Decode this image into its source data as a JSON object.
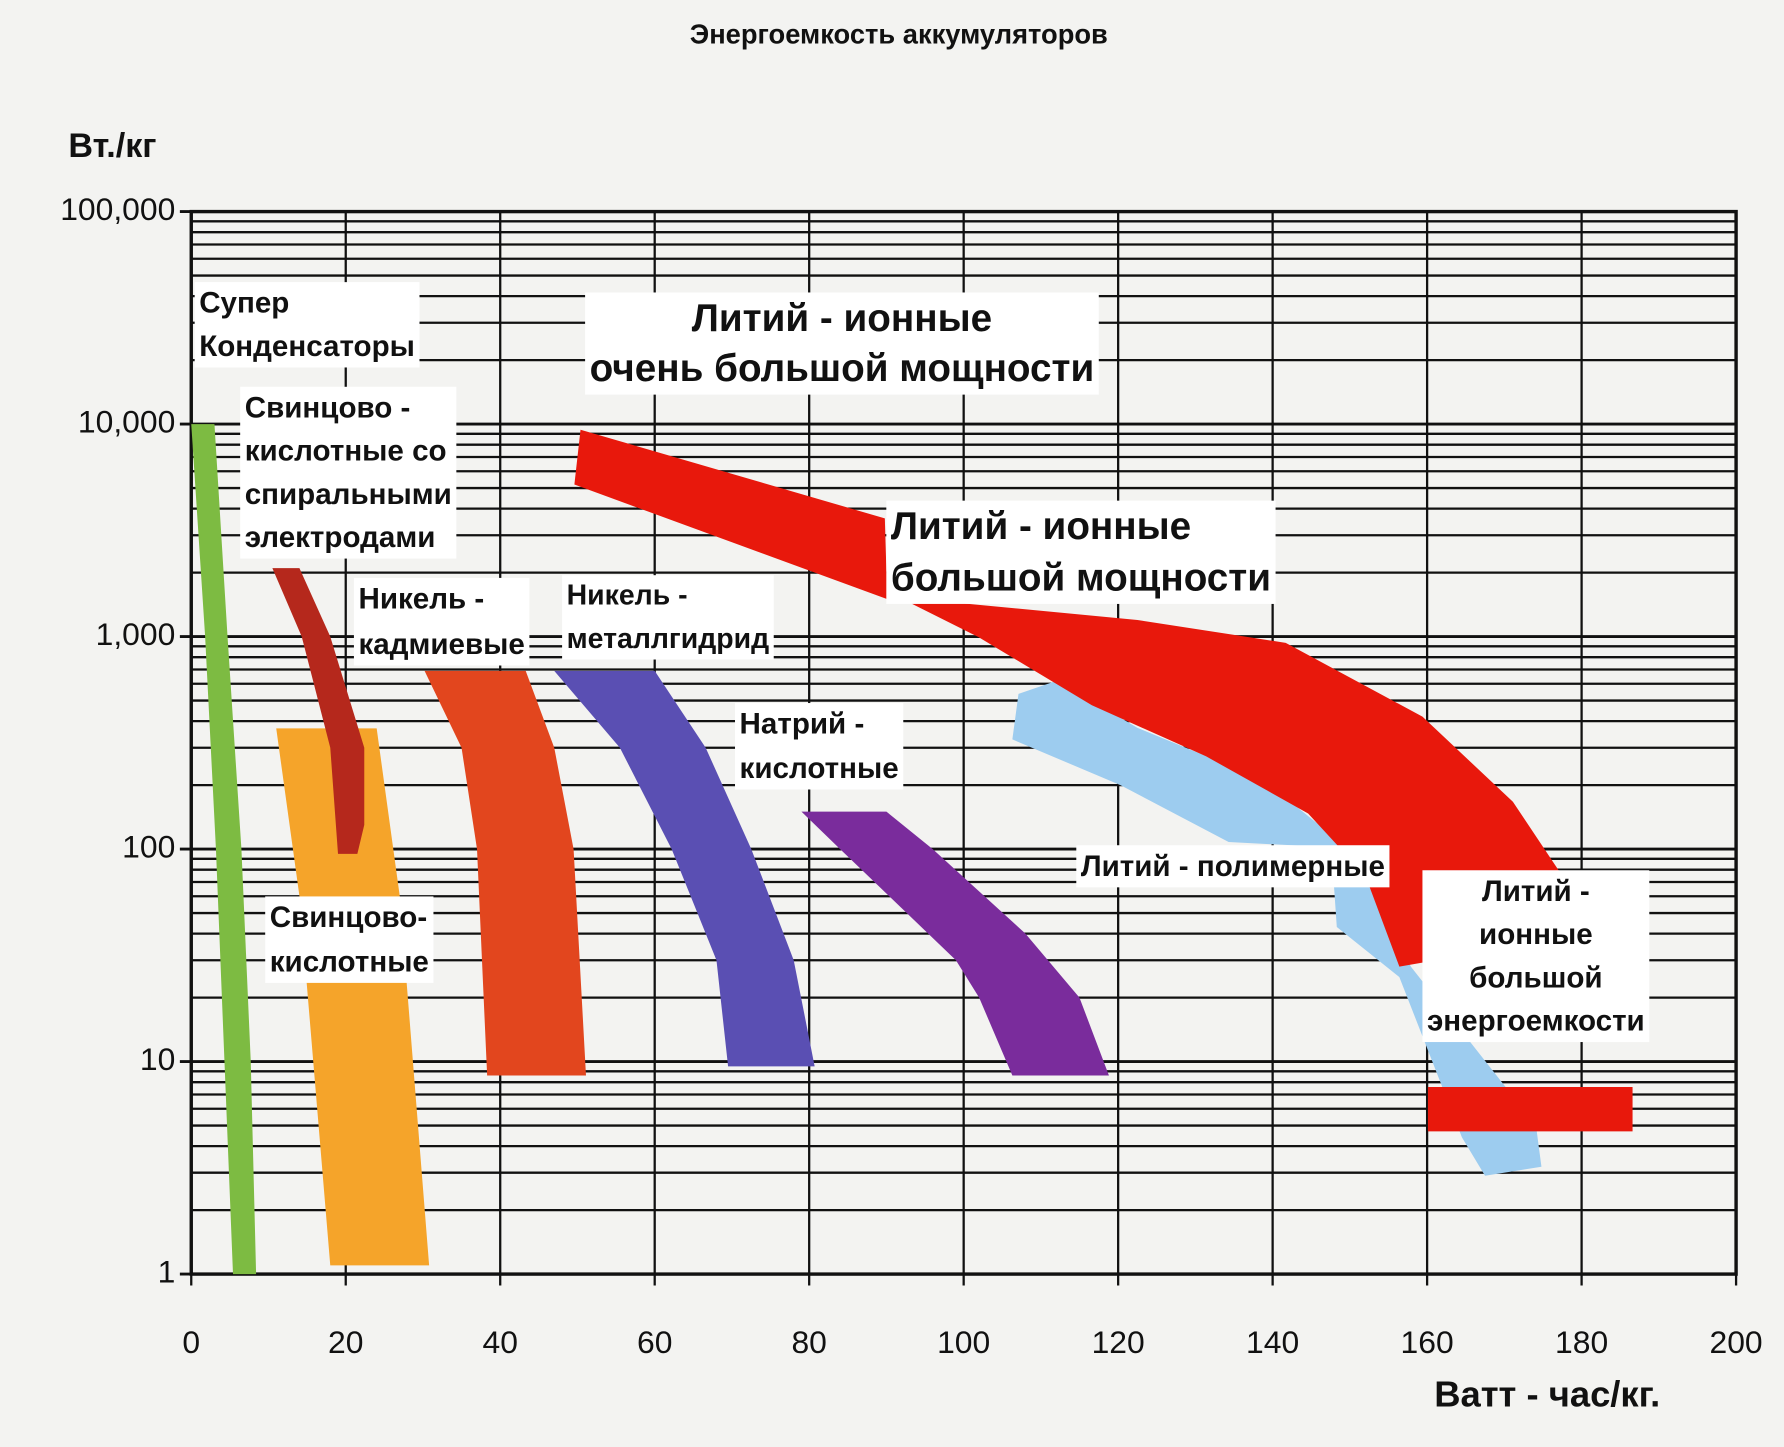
{
  "chart_data": {
    "type": "region",
    "title": "Энергоемкость аккумуляторов",
    "ylabel": "Вт./кг",
    "xlabel": "Ватт - час/кг.",
    "xlim": [
      0,
      200
    ],
    "xticks": [
      0,
      20,
      40,
      60,
      80,
      100,
      120,
      140,
      160,
      180,
      200
    ],
    "ylim": [
      1,
      100000
    ],
    "ylog": true,
    "yticks": [
      1,
      10,
      100,
      {
        "value": 1000,
        "label": "1,000"
      },
      {
        "value": 10000,
        "label": "10,000"
      },
      {
        "value": 100000,
        "label": "100,000"
      }
    ],
    "minor_yticks": [
      2,
      3,
      4,
      5,
      6,
      7,
      8,
      9,
      20,
      30,
      40,
      50,
      60,
      70,
      80,
      90,
      200,
      300,
      400,
      500,
      600,
      700,
      800,
      900,
      2000,
      3000,
      4000,
      5000,
      6000,
      7000,
      8000,
      9000,
      20000,
      30000,
      40000,
      50000,
      60000,
      70000,
      80000,
      90000
    ],
    "grid": true,
    "series": [
      {
        "label": [
          "Супер",
          "Конденсаторы"
        ],
        "color": "#7dbb42",
        "x": [
          0,
          3,
          4.7,
          6.5,
          7.7,
          8.4,
          5.4,
          4.3,
          3.2,
          1.8
        ],
        "values": [
          10000,
          10000,
          1000,
          100,
          10,
          1,
          1,
          10,
          100,
          1000
        ]
      },
      {
        "label": [
          "Свинцово-",
          "кислотные"
        ],
        "color": "#f5a42a",
        "x": [
          11,
          24,
          27,
          30.8,
          18,
          14
        ],
        "values": [
          370,
          370,
          60,
          1.1,
          1.1,
          60
        ]
      },
      {
        "label": [
          "Свинцово -",
          "кислотные со",
          "спиральными",
          "электродами"
        ],
        "color": "#b5281c",
        "x": [
          10.5,
          14,
          18,
          22.4,
          22.4,
          21.5,
          19,
          18,
          14.3
        ],
        "values": [
          2100,
          2100,
          1000,
          300,
          130,
          95,
          95,
          300,
          1000
        ]
      },
      {
        "label": [
          "Никель -",
          "кадмиевые"
        ],
        "color": "#e2461e",
        "x": [
          30.2,
          43.3,
          47,
          49.5,
          51.1,
          38.3,
          37,
          35
        ],
        "values": [
          690,
          690,
          300,
          100,
          8.6,
          8.6,
          100,
          300
        ]
      },
      {
        "label": [
          "Никель -",
          "металлгидрид"
        ],
        "color": "#5a4fb3",
        "x": [
          47,
          60,
          66.6,
          72.5,
          78,
          80.7,
          69.5,
          68,
          62.2,
          55.5
        ],
        "values": [
          690,
          690,
          300,
          100,
          30,
          9.5,
          9.5,
          30,
          100,
          300
        ]
      },
      {
        "label": [
          "Натрий -",
          "кислотные"
        ],
        "color": "#7a2c9c",
        "x": [
          79,
          90,
          96,
          108,
          115,
          118.8,
          106.3,
          102,
          99,
          84
        ],
        "values": [
          150,
          150,
          100,
          40,
          20,
          8.6,
          8.6,
          20,
          30,
          100
        ]
      },
      {
        "label": [
          "Литий - полимерные"
        ],
        "label_lines": 0,
        "color": "#9dccef",
        "x": [
          107.1,
          112.2,
          122.5,
          138.7,
          150.5,
          157.9,
          174.1,
          174.8,
          167.5,
          164.5,
          156.4,
          148.3,
          147.6,
          134.3,
          120.3,
          106.3
        ],
        "values": [
          537,
          622,
          372,
          213,
          96,
          28,
          5,
          3.2,
          2.9,
          4.4,
          25,
          43,
          102,
          108,
          200,
          328
        ]
      },
      {
        "label": [
          "Литий - ионные",
          "очень большой мощности"
        ],
        "color": "#e8180c",
        "x": [
          50.4,
          89.8,
          90.1,
          49.6
        ],
        "values": [
          9400,
          3600,
          1500,
          5200
        ]
      },
      {
        "label": [
          "Литий - ионные",
          "большой мощности"
        ],
        "color": "#e8180c",
        "x": [
          91.6,
          122.5,
          141.7,
          159.4,
          171.1,
          178.5,
          181,
          156.4,
          152,
          144.6,
          131.4,
          116.6,
          101.9
        ],
        "values": [
          1531,
          1197,
          935,
          420,
          167,
          66,
          40,
          28,
          75,
          147,
          273,
          475,
          995
        ]
      },
      {
        "label": [
          "Литий -",
          "ионные",
          "большой",
          "энергоемкости"
        ],
        "color": "#e8180c",
        "x": [
          160.1,
          186.6,
          186.6,
          160.1
        ],
        "values": [
          7.6,
          7.6,
          4.7,
          4.7
        ]
      }
    ]
  }
}
